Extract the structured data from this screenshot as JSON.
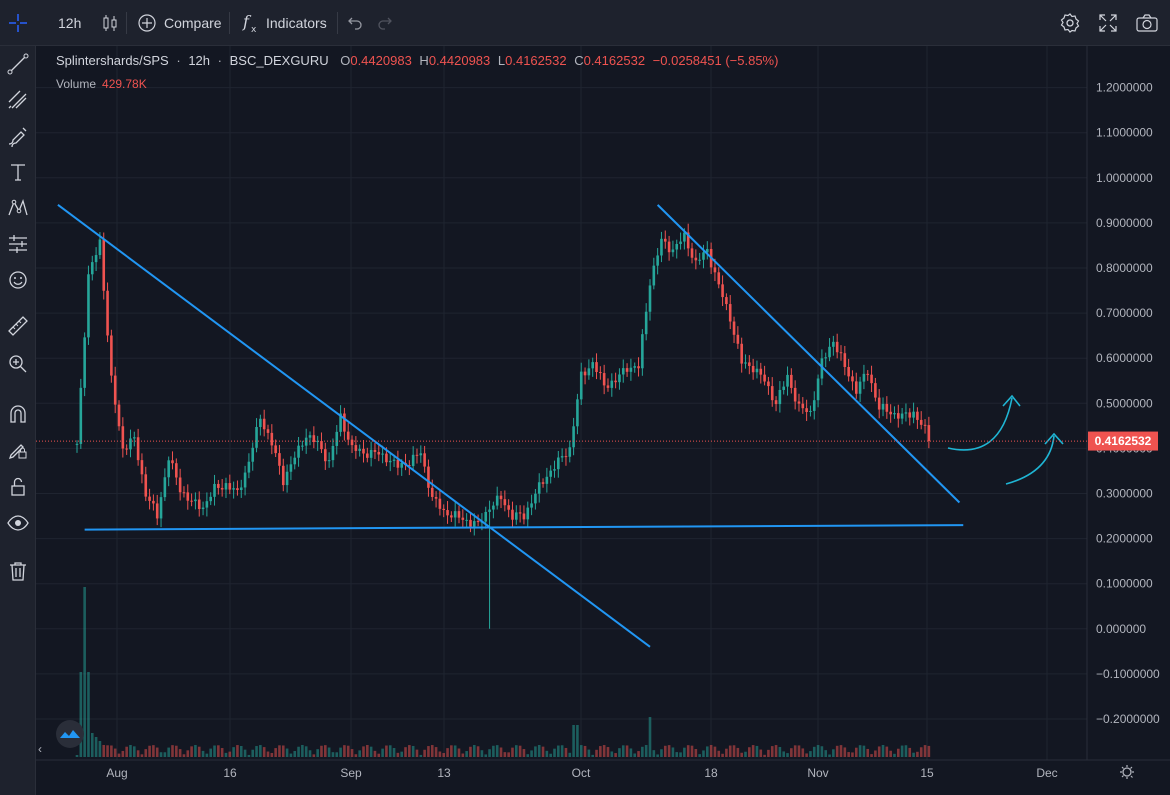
{
  "toolbar": {
    "interval": "12h",
    "compare_label": "Compare",
    "indicators_label": "Indicators"
  },
  "legend": {
    "symbol": "Splintershards/SPS",
    "interval": "12h",
    "exchange": "BSC_DEXGURU",
    "open_key": "O",
    "open": "0.4420983",
    "high_key": "H",
    "high": "0.4420983",
    "low_key": "L",
    "low": "0.4162532",
    "close_key": "C",
    "close": "0.4162532",
    "change": "−0.0258451 (−5.85%)",
    "volume_label": "Volume",
    "volume_value": "429.78K"
  },
  "price_axis": {
    "ticks": [
      "1.2000000",
      "1.1000000",
      "1.0000000",
      "0.9000000",
      "0.8000000",
      "0.7000000",
      "0.6000000",
      "0.5000000",
      "0.4000000",
      "0.3000000",
      "0.2000000",
      "0.1000000",
      "0.000000",
      "−0.1000000",
      "−0.2000000"
    ],
    "tick_values": [
      1.2,
      1.1,
      1.0,
      0.9,
      0.8,
      0.7,
      0.6,
      0.5,
      0.4,
      0.3,
      0.2,
      0.1,
      0.0,
      -0.1,
      -0.2
    ],
    "last_price_label": "0.4162532"
  },
  "time_axis": {
    "ticks": [
      "Aug",
      "16",
      "Sep",
      "13",
      "Oct",
      "18",
      "Nov",
      "15",
      "Dec"
    ]
  },
  "colors": {
    "background": "#131722",
    "up": "#26a69a",
    "down": "#ef5350",
    "drawing": "#2196f3",
    "arrow": "#1fb5d4",
    "grid": "#1f2430"
  },
  "icons": {
    "left_toolbar": [
      "crosshair-icon",
      "trendline-icon",
      "fib-retracement-icon",
      "brush-icon",
      "text-icon",
      "pattern-icon",
      "forecast-icon",
      "emoji-icon",
      "ruler-icon",
      "zoom-in-icon",
      "magnet-icon",
      "lock-drawing-icon",
      "unlock-icon",
      "eye-icon",
      "trash-icon"
    ],
    "top_right": [
      "settings-icon",
      "fullscreen-icon",
      "screenshot-icon"
    ]
  },
  "chart_data": {
    "type": "candlestick",
    "x_ticks": [
      "Aug",
      "16",
      "Sep",
      "13",
      "Oct",
      "18",
      "Nov",
      "15",
      "Dec"
    ],
    "ylim": [
      -0.2,
      1.2
    ],
    "close_path": [
      [
        0,
        0.41
      ],
      [
        3,
        0.78
      ],
      [
        6,
        0.86
      ],
      [
        9,
        0.55
      ],
      [
        12,
        0.4
      ],
      [
        15,
        0.42
      ],
      [
        18,
        0.3
      ],
      [
        21,
        0.25
      ],
      [
        24,
        0.38
      ],
      [
        27,
        0.31
      ],
      [
        30,
        0.28
      ],
      [
        33,
        0.27
      ],
      [
        36,
        0.31
      ],
      [
        39,
        0.32
      ],
      [
        42,
        0.3
      ],
      [
        45,
        0.37
      ],
      [
        48,
        0.47
      ],
      [
        51,
        0.41
      ],
      [
        54,
        0.33
      ],
      [
        57,
        0.38
      ],
      [
        60,
        0.43
      ],
      [
        63,
        0.41
      ],
      [
        66,
        0.37
      ],
      [
        69,
        0.47
      ],
      [
        72,
        0.4
      ],
      [
        75,
        0.39
      ],
      [
        78,
        0.39
      ],
      [
        81,
        0.38
      ],
      [
        84,
        0.36
      ],
      [
        87,
        0.37
      ],
      [
        90,
        0.39
      ],
      [
        93,
        0.29
      ],
      [
        96,
        0.26
      ],
      [
        99,
        0.25
      ],
      [
        102,
        0.24
      ],
      [
        105,
        0.23
      ],
      [
        108,
        0.27
      ],
      [
        111,
        0.29
      ],
      [
        114,
        0.25
      ],
      [
        117,
        0.25
      ],
      [
        120,
        0.3
      ],
      [
        123,
        0.34
      ],
      [
        126,
        0.37
      ],
      [
        129,
        0.4
      ],
      [
        132,
        0.56
      ],
      [
        135,
        0.59
      ],
      [
        138,
        0.54
      ],
      [
        141,
        0.55
      ],
      [
        144,
        0.58
      ],
      [
        147,
        0.58
      ],
      [
        150,
        0.77
      ],
      [
        153,
        0.86
      ],
      [
        156,
        0.84
      ],
      [
        159,
        0.87
      ],
      [
        162,
        0.81
      ],
      [
        165,
        0.84
      ],
      [
        168,
        0.76
      ],
      [
        171,
        0.69
      ],
      [
        174,
        0.59
      ],
      [
        177,
        0.58
      ],
      [
        180,
        0.55
      ],
      [
        183,
        0.5
      ],
      [
        186,
        0.56
      ],
      [
        189,
        0.49
      ],
      [
        192,
        0.48
      ],
      [
        195,
        0.59
      ],
      [
        198,
        0.64
      ],
      [
        201,
        0.58
      ],
      [
        204,
        0.53
      ],
      [
        207,
        0.57
      ],
      [
        210,
        0.49
      ],
      [
        213,
        0.48
      ],
      [
        216,
        0.47
      ],
      [
        219,
        0.48
      ],
      [
        222,
        0.44
      ],
      [
        223,
        0.416
      ]
    ],
    "series": [
      {
        "values_ref": "close_path"
      }
    ],
    "last_price": 0.4162532,
    "grid": true,
    "drawings": [
      {
        "type": "trendline",
        "points": [
          [
            -5,
            0.94
          ],
          [
            150,
            -0.04
          ]
        ]
      },
      {
        "type": "trendline",
        "points": [
          [
            2,
            0.22
          ],
          [
            232,
            0.23
          ]
        ]
      },
      {
        "type": "trendline",
        "points": [
          [
            152,
            0.94
          ],
          [
            231,
            0.28
          ]
        ]
      }
    ]
  }
}
